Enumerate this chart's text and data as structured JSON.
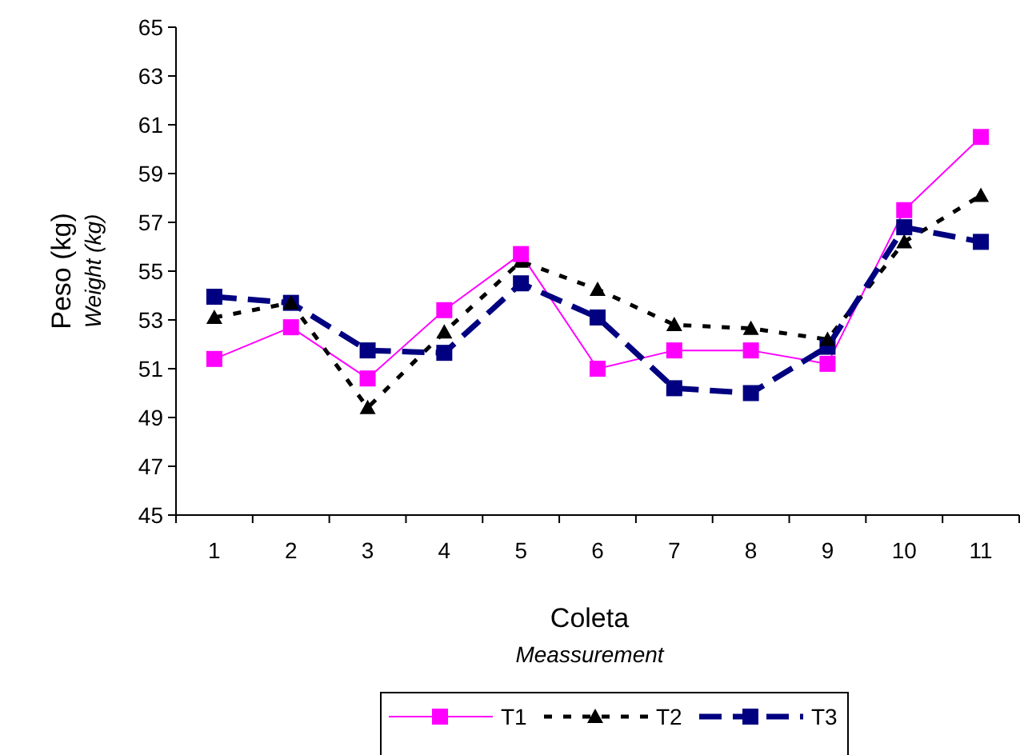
{
  "chart_data": {
    "type": "line",
    "xlabel": "Coleta\nMeassurement",
    "ylabel": "Peso (kg)\nWeight (kg)",
    "categories": [
      "1",
      "2",
      "3",
      "4",
      "5",
      "6",
      "7",
      "8",
      "9",
      "10",
      "11"
    ],
    "ylim": [
      45,
      65
    ],
    "yticks": [
      45,
      47,
      49,
      51,
      53,
      55,
      57,
      59,
      61,
      63,
      65
    ],
    "grid": false,
    "legend": "bottom",
    "series": [
      {
        "name": "T1",
        "color": "#ff00ff",
        "marker": "square",
        "line_style": "solid",
        "values": [
          51.4,
          52.7,
          50.6,
          53.4,
          55.7,
          51.0,
          51.75,
          51.75,
          51.2,
          57.5,
          60.5
        ]
      },
      {
        "name": "T2",
        "color": "#000000",
        "marker": "triangle",
        "line_style": "dotted",
        "values": [
          53.1,
          53.7,
          49.4,
          52.5,
          55.4,
          54.25,
          52.8,
          52.65,
          52.2,
          56.2,
          58.1
        ]
      },
      {
        "name": "T3",
        "color": "#000080",
        "marker": "square",
        "line_style": "dashed",
        "values": [
          53.95,
          53.7,
          51.75,
          51.65,
          54.5,
          53.1,
          50.2,
          50.0,
          51.9,
          56.8,
          56.2
        ]
      }
    ]
  }
}
